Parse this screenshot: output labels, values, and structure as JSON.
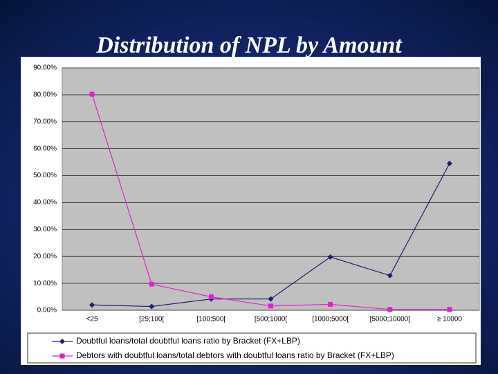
{
  "chart_data": {
    "type": "line",
    "title": "Distribution of NPL by Amount",
    "categories": [
      "<25",
      "[25;100[",
      "[100;500[",
      "[500;1000[",
      "[1000;5000[",
      "[5000;10000[",
      "≥ 10000"
    ],
    "series": [
      {
        "name": "Doubtful loans/total doubtful loans ratio by Bracket (FX+LBP)",
        "color": "#1a1f6e",
        "marker": "diamond",
        "values": [
          2.0,
          1.4,
          4.2,
          4.2,
          19.8,
          12.9,
          54.5
        ]
      },
      {
        "name": "Debtors with doubtful loans/total debtors with doubtful loans ratio by Bracket (FX+LBP)",
        "color": "#e020d0",
        "marker": "square",
        "values": [
          80.2,
          9.7,
          5.0,
          1.6,
          2.2,
          0.3,
          0.3
        ]
      }
    ],
    "ylim": [
      0,
      90
    ],
    "yticks": [
      {
        "value": 0,
        "label": "0.00%"
      },
      {
        "value": 10,
        "label": "10.00%"
      },
      {
        "value": 20,
        "label": "20.00%"
      },
      {
        "value": 30,
        "label": "30.00%"
      },
      {
        "value": 40,
        "label": "40.00%"
      },
      {
        "value": 50,
        "label": "50.00%"
      },
      {
        "value": 60,
        "label": "60.00%"
      },
      {
        "value": 70,
        "label": "70.00%"
      },
      {
        "value": 80,
        "label": "80.00%"
      },
      {
        "value": 90,
        "label": "90.00%"
      }
    ],
    "grid": true,
    "legend": "bottom"
  }
}
